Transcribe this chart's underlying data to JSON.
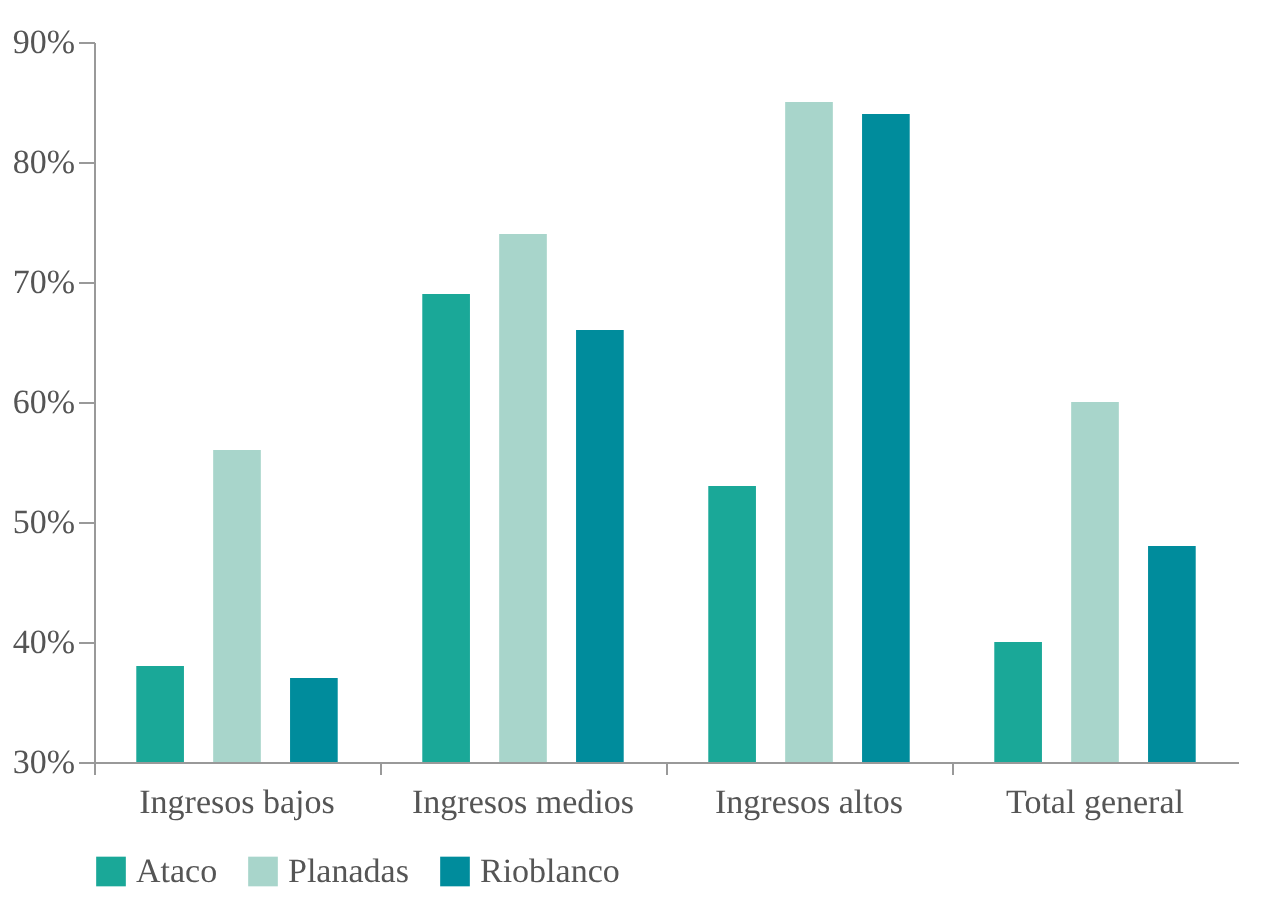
{
  "chart_data": {
    "type": "bar",
    "categories": [
      "Ingresos bajos",
      "Ingresos medios",
      "Ingresos altos",
      "Total general"
    ],
    "series": [
      {
        "name": "Ataco",
        "color": "#1aa898",
        "values": [
          38,
          69,
          53,
          40
        ]
      },
      {
        "name": "Planadas",
        "color": "#a8d5cb",
        "values": [
          56,
          74,
          85,
          60
        ]
      },
      {
        "name": "Rioblanco",
        "color": "#008c9c",
        "values": [
          37,
          66,
          84,
          48
        ]
      }
    ],
    "ylim": [
      30,
      90
    ],
    "yticks": [
      {
        "value": 30,
        "label": "30%"
      },
      {
        "value": 40,
        "label": "40%"
      },
      {
        "value": 50,
        "label": "50%"
      },
      {
        "value": 60,
        "label": "60%"
      },
      {
        "value": 70,
        "label": "70%"
      },
      {
        "value": 80,
        "label": "80%"
      },
      {
        "value": 90,
        "label": "90%"
      }
    ],
    "grid": false,
    "legend": "bottom"
  }
}
